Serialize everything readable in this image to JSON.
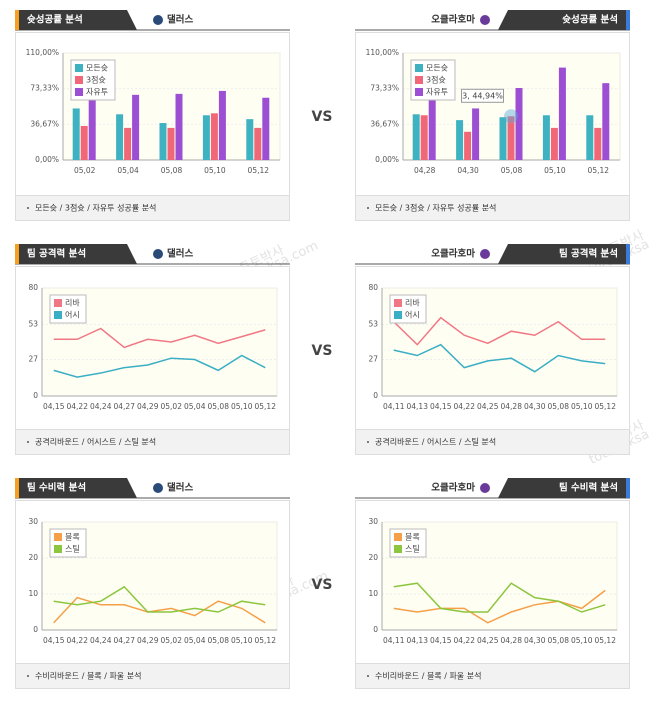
{
  "vs": "VS",
  "watermark": [
    "토토박사",
    "totobaksa.com"
  ],
  "chart_data": [
    {
      "type": "bar",
      "section": "슛성공률 분석",
      "team": "댈러스",
      "footnote": "모든슛 / 3점슛 / 자유투 성공률 분석",
      "categories": [
        "05,02",
        "05,04",
        "05,08",
        "05,10",
        "05,12"
      ],
      "series": [
        {
          "name": "모든슛",
          "color": "#3fb2c2",
          "values": [
            53,
            47,
            38,
            46,
            42
          ]
        },
        {
          "name": "3점슛",
          "color": "#f06878",
          "values": [
            35,
            33,
            33,
            48,
            33
          ]
        },
        {
          "name": "자유투",
          "color": "#9c4fd2",
          "values": [
            67,
            67,
            68,
            71,
            64
          ]
        }
      ],
      "ylim": [
        0,
        110
      ],
      "yticks": [
        {
          "value": 0,
          "label": "0,00%"
        },
        {
          "value": 36.67,
          "label": "36,67%"
        },
        {
          "value": 73.33,
          "label": "73,33%"
        },
        {
          "value": 110,
          "label": "110,00%"
        }
      ]
    },
    {
      "type": "bar",
      "section": "슛성공률 분석",
      "team": "오클라호마",
      "footnote": "모든슛 / 3점슛 / 자유투 성공률 분석",
      "categories": [
        "04,28",
        "04,30",
        "05,08",
        "05,10",
        "05,12"
      ],
      "series": [
        {
          "name": "모든슛",
          "color": "#3fb2c2",
          "values": [
            47,
            41,
            44,
            46,
            46
          ]
        },
        {
          "name": "3점슛",
          "color": "#f06878",
          "values": [
            46,
            29,
            44.94,
            33,
            33
          ]
        },
        {
          "name": "자유투",
          "color": "#9c4fd2",
          "values": [
            67,
            53,
            74,
            95,
            79
          ]
        }
      ],
      "annotation": "3, 44,94%",
      "ylim": [
        0,
        110
      ],
      "yticks": [
        {
          "value": 0,
          "label": "0,00%"
        },
        {
          "value": 36.67,
          "label": "36,67%"
        },
        {
          "value": 73.33,
          "label": "73,33%"
        },
        {
          "value": 110,
          "label": "110,00%"
        }
      ]
    },
    {
      "type": "line",
      "section": "팀 공격력 분석",
      "team": "댈러스",
      "footnote": "공격리바운드 / 어시스트 / 스틸 분석",
      "categories": [
        "04,15",
        "04,22",
        "04,24",
        "04,27",
        "04,29",
        "05,02",
        "05,04",
        "05,08",
        "05,10",
        "05,12"
      ],
      "series": [
        {
          "name": "리바",
          "color": "#f07884",
          "values": [
            42,
            42,
            50,
            36,
            42,
            40,
            45,
            39,
            44,
            49
          ]
        },
        {
          "name": "어시",
          "color": "#3aaec4",
          "values": [
            19,
            14,
            17,
            21,
            23,
            28,
            27,
            19,
            30,
            21
          ]
        }
      ],
      "ylim": [
        0,
        80
      ],
      "yticks": [
        0,
        27,
        53,
        80
      ]
    },
    {
      "type": "line",
      "section": "팀 공격력 분석",
      "team": "오클라호마",
      "footnote": "공격리바운드 / 어시스트 / 스틸 분석",
      "categories": [
        "04,11",
        "04,13",
        "04,15",
        "04,22",
        "04,25",
        "04,28",
        "04,30",
        "05,08",
        "05,10",
        "05,12"
      ],
      "series": [
        {
          "name": "리바",
          "color": "#f07884",
          "values": [
            55,
            38,
            58,
            45,
            39,
            48,
            45,
            55,
            42,
            42
          ]
        },
        {
          "name": "어시",
          "color": "#3aaec4",
          "values": [
            34,
            30,
            38,
            21,
            26,
            28,
            18,
            30,
            26,
            24
          ]
        }
      ],
      "ylim": [
        0,
        80
      ],
      "yticks": [
        0,
        27,
        53,
        80
      ]
    },
    {
      "type": "line",
      "section": "팀 수비력 분석",
      "team": "댈러스",
      "footnote": "수비리바운드 / 블록 / 파울 분석",
      "categories": [
        "04,15",
        "04,22",
        "04,24",
        "04,27",
        "04,29",
        "05,02",
        "05,04",
        "05,08",
        "05,10",
        "05,12"
      ],
      "series": [
        {
          "name": "블록",
          "color": "#f5a048",
          "values": [
            2,
            9,
            7,
            7,
            5,
            6,
            4,
            8,
            6,
            2
          ]
        },
        {
          "name": "스틸",
          "color": "#8cc63e",
          "values": [
            8,
            7,
            8,
            12,
            5,
            5,
            6,
            5,
            8,
            7
          ]
        }
      ],
      "ylim": [
        0,
        30
      ],
      "yticks": [
        0,
        10,
        20,
        30
      ]
    },
    {
      "type": "line",
      "section": "팀 수비력 분석",
      "team": "오클라호마",
      "footnote": "수비리바운드 / 블록 / 파울 분석",
      "categories": [
        "04,11",
        "04,13",
        "04,15",
        "04,22",
        "04,25",
        "04,28",
        "04,30",
        "05,08",
        "05,10",
        "05,12"
      ],
      "series": [
        {
          "name": "블록",
          "color": "#f5a048",
          "values": [
            6,
            5,
            6,
            6,
            2,
            5,
            7,
            8,
            6,
            11
          ]
        },
        {
          "name": "스틸",
          "color": "#8cc63e",
          "values": [
            12,
            13,
            6,
            5,
            5,
            13,
            9,
            8,
            5,
            7
          ]
        }
      ],
      "ylim": [
        0,
        30
      ],
      "yticks": [
        0,
        10,
        20,
        30
      ]
    }
  ]
}
